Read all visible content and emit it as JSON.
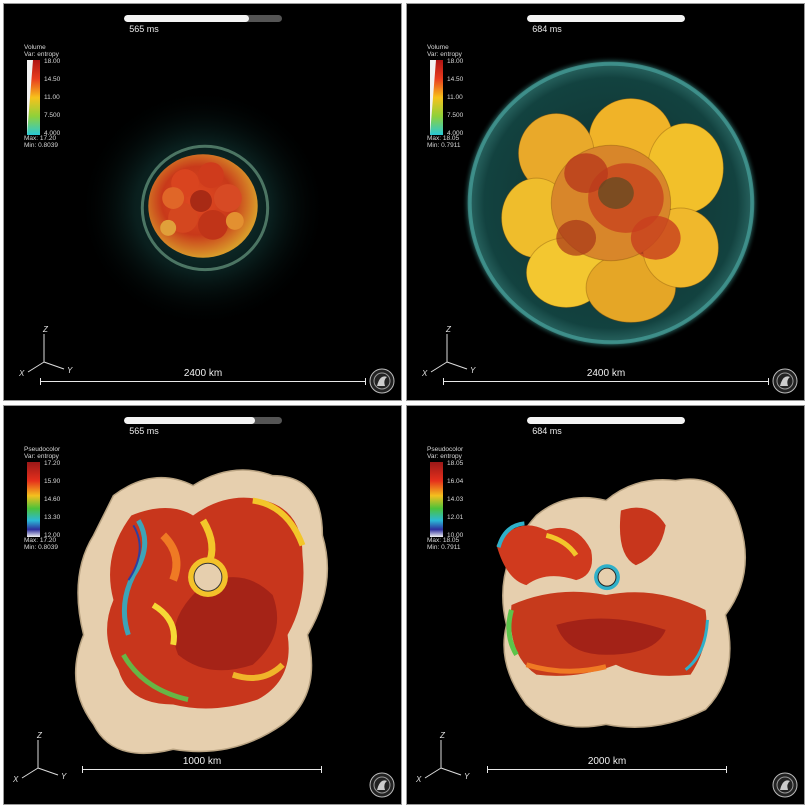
{
  "panels": [
    {
      "id": "p0",
      "time": "565 ms",
      "progress": 0.79,
      "legend": {
        "type": "Volume",
        "variable": "Var: entropy",
        "ticks": [
          "18.00",
          "14.50",
          "11.00",
          "7.500",
          "4.000"
        ],
        "max": "Max: 17.20",
        "min": "Min: 0.8039"
      },
      "scale_label": "2400 km"
    },
    {
      "id": "p1",
      "time": "684 ms",
      "progress": 1.0,
      "legend": {
        "type": "Volume",
        "variable": "Var: entropy",
        "ticks": [
          "18.00",
          "14.50",
          "11.00",
          "7.500",
          "4.000"
        ],
        "max": "Max: 18.05",
        "min": "Min: 0.7911"
      },
      "scale_label": "2400 km"
    },
    {
      "id": "p2",
      "time": "565 ms",
      "progress": 0.83,
      "legend": {
        "type": "Pseudocolor",
        "variable": "Var: entropy",
        "ticks": [
          "17.20",
          "15.90",
          "14.60",
          "13.30",
          "12.00"
        ],
        "max": "Max: 17.20",
        "min": "Min: 0.8039"
      },
      "scale_label": "1000 km"
    },
    {
      "id": "p3",
      "time": "684 ms",
      "progress": 1.0,
      "legend": {
        "type": "Pseudocolor",
        "variable": "Var: entropy",
        "ticks": [
          "18.05",
          "16.04",
          "14.03",
          "12.01",
          "10.00"
        ],
        "max": "Max: 18.05",
        "min": "Min: 0.7911"
      },
      "scale_label": "2000 km"
    }
  ],
  "axis_labels": {
    "x": "X",
    "y": "Y",
    "z": "Z"
  },
  "colors": {
    "background": "#000000",
    "shock_teal": "#3fb8b0",
    "plume_hot": "#d2311a",
    "plume_warm": "#f2c21a",
    "surface_beige": "#e8d2b0"
  }
}
